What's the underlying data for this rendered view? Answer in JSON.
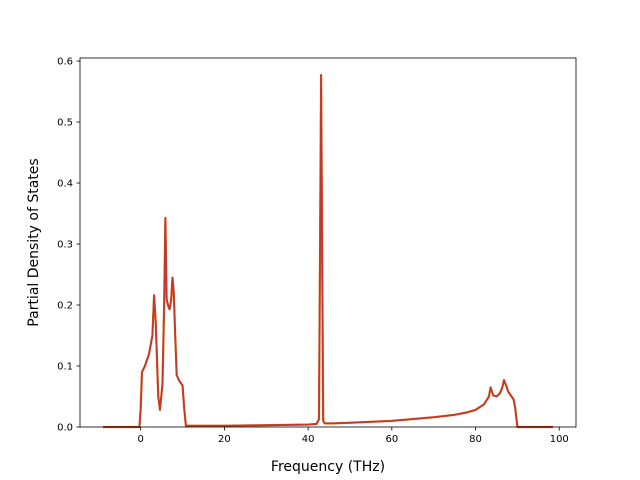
{
  "chart_data": {
    "type": "line",
    "title": "",
    "xlabel": "Frequency (THz)",
    "ylabel": "Partial Density of States",
    "xlim": [
      -14.5,
      104
    ],
    "ylim": [
      0,
      0.605
    ],
    "xticks": [
      0,
      20,
      40,
      60,
      80,
      100
    ],
    "xtick_labels": [
      "0",
      "20",
      "40",
      "60",
      "80",
      "100"
    ],
    "yticks": [
      0.0,
      0.1,
      0.2,
      0.3,
      0.4,
      0.5,
      0.6
    ],
    "ytick_labels": [
      "0.0",
      "0.1",
      "0.2",
      "0.3",
      "0.4",
      "0.5",
      "0.6"
    ],
    "grid": false,
    "colors": {
      "line": "#c0392b",
      "line_under": "#e67e22",
      "axes": "#000000"
    },
    "series": [
      {
        "x": [
          -9,
          -0.3,
          0,
          0.3,
          1,
          2,
          2.8,
          3.2,
          3.6,
          4.2,
          4.6,
          5.2,
          5.6,
          5.9,
          6.2,
          6.5,
          6.9,
          7.3,
          7.6,
          7.9,
          8.2,
          8.6,
          9.2,
          10,
          10.4,
          10.8,
          12,
          20,
          30,
          40,
          42,
          42.6,
          42.9,
          43.1,
          43.3,
          43.6,
          44,
          46,
          50,
          60,
          70,
          75,
          78,
          80,
          82,
          83.2,
          83.6,
          84.2,
          85,
          85.8,
          86.4,
          86.8,
          87.3,
          87.8,
          88.6,
          89.1,
          89.5,
          90,
          95,
          98.5
        ],
        "y": [
          0,
          0,
          0.03,
          0.09,
          0.1,
          0.12,
          0.15,
          0.216,
          0.17,
          0.05,
          0.028,
          0.07,
          0.2,
          0.343,
          0.21,
          0.2,
          0.193,
          0.21,
          0.245,
          0.22,
          0.16,
          0.085,
          0.076,
          0.068,
          0.03,
          0.002,
          0.002,
          0.002,
          0.003,
          0.004,
          0.005,
          0.013,
          0.35,
          0.577,
          0.35,
          0.01,
          0.006,
          0.006,
          0.007,
          0.01,
          0.016,
          0.02,
          0.024,
          0.028,
          0.037,
          0.05,
          0.065,
          0.052,
          0.05,
          0.055,
          0.065,
          0.077,
          0.068,
          0.058,
          0.05,
          0.045,
          0.03,
          0,
          0,
          0
        ]
      }
    ]
  }
}
